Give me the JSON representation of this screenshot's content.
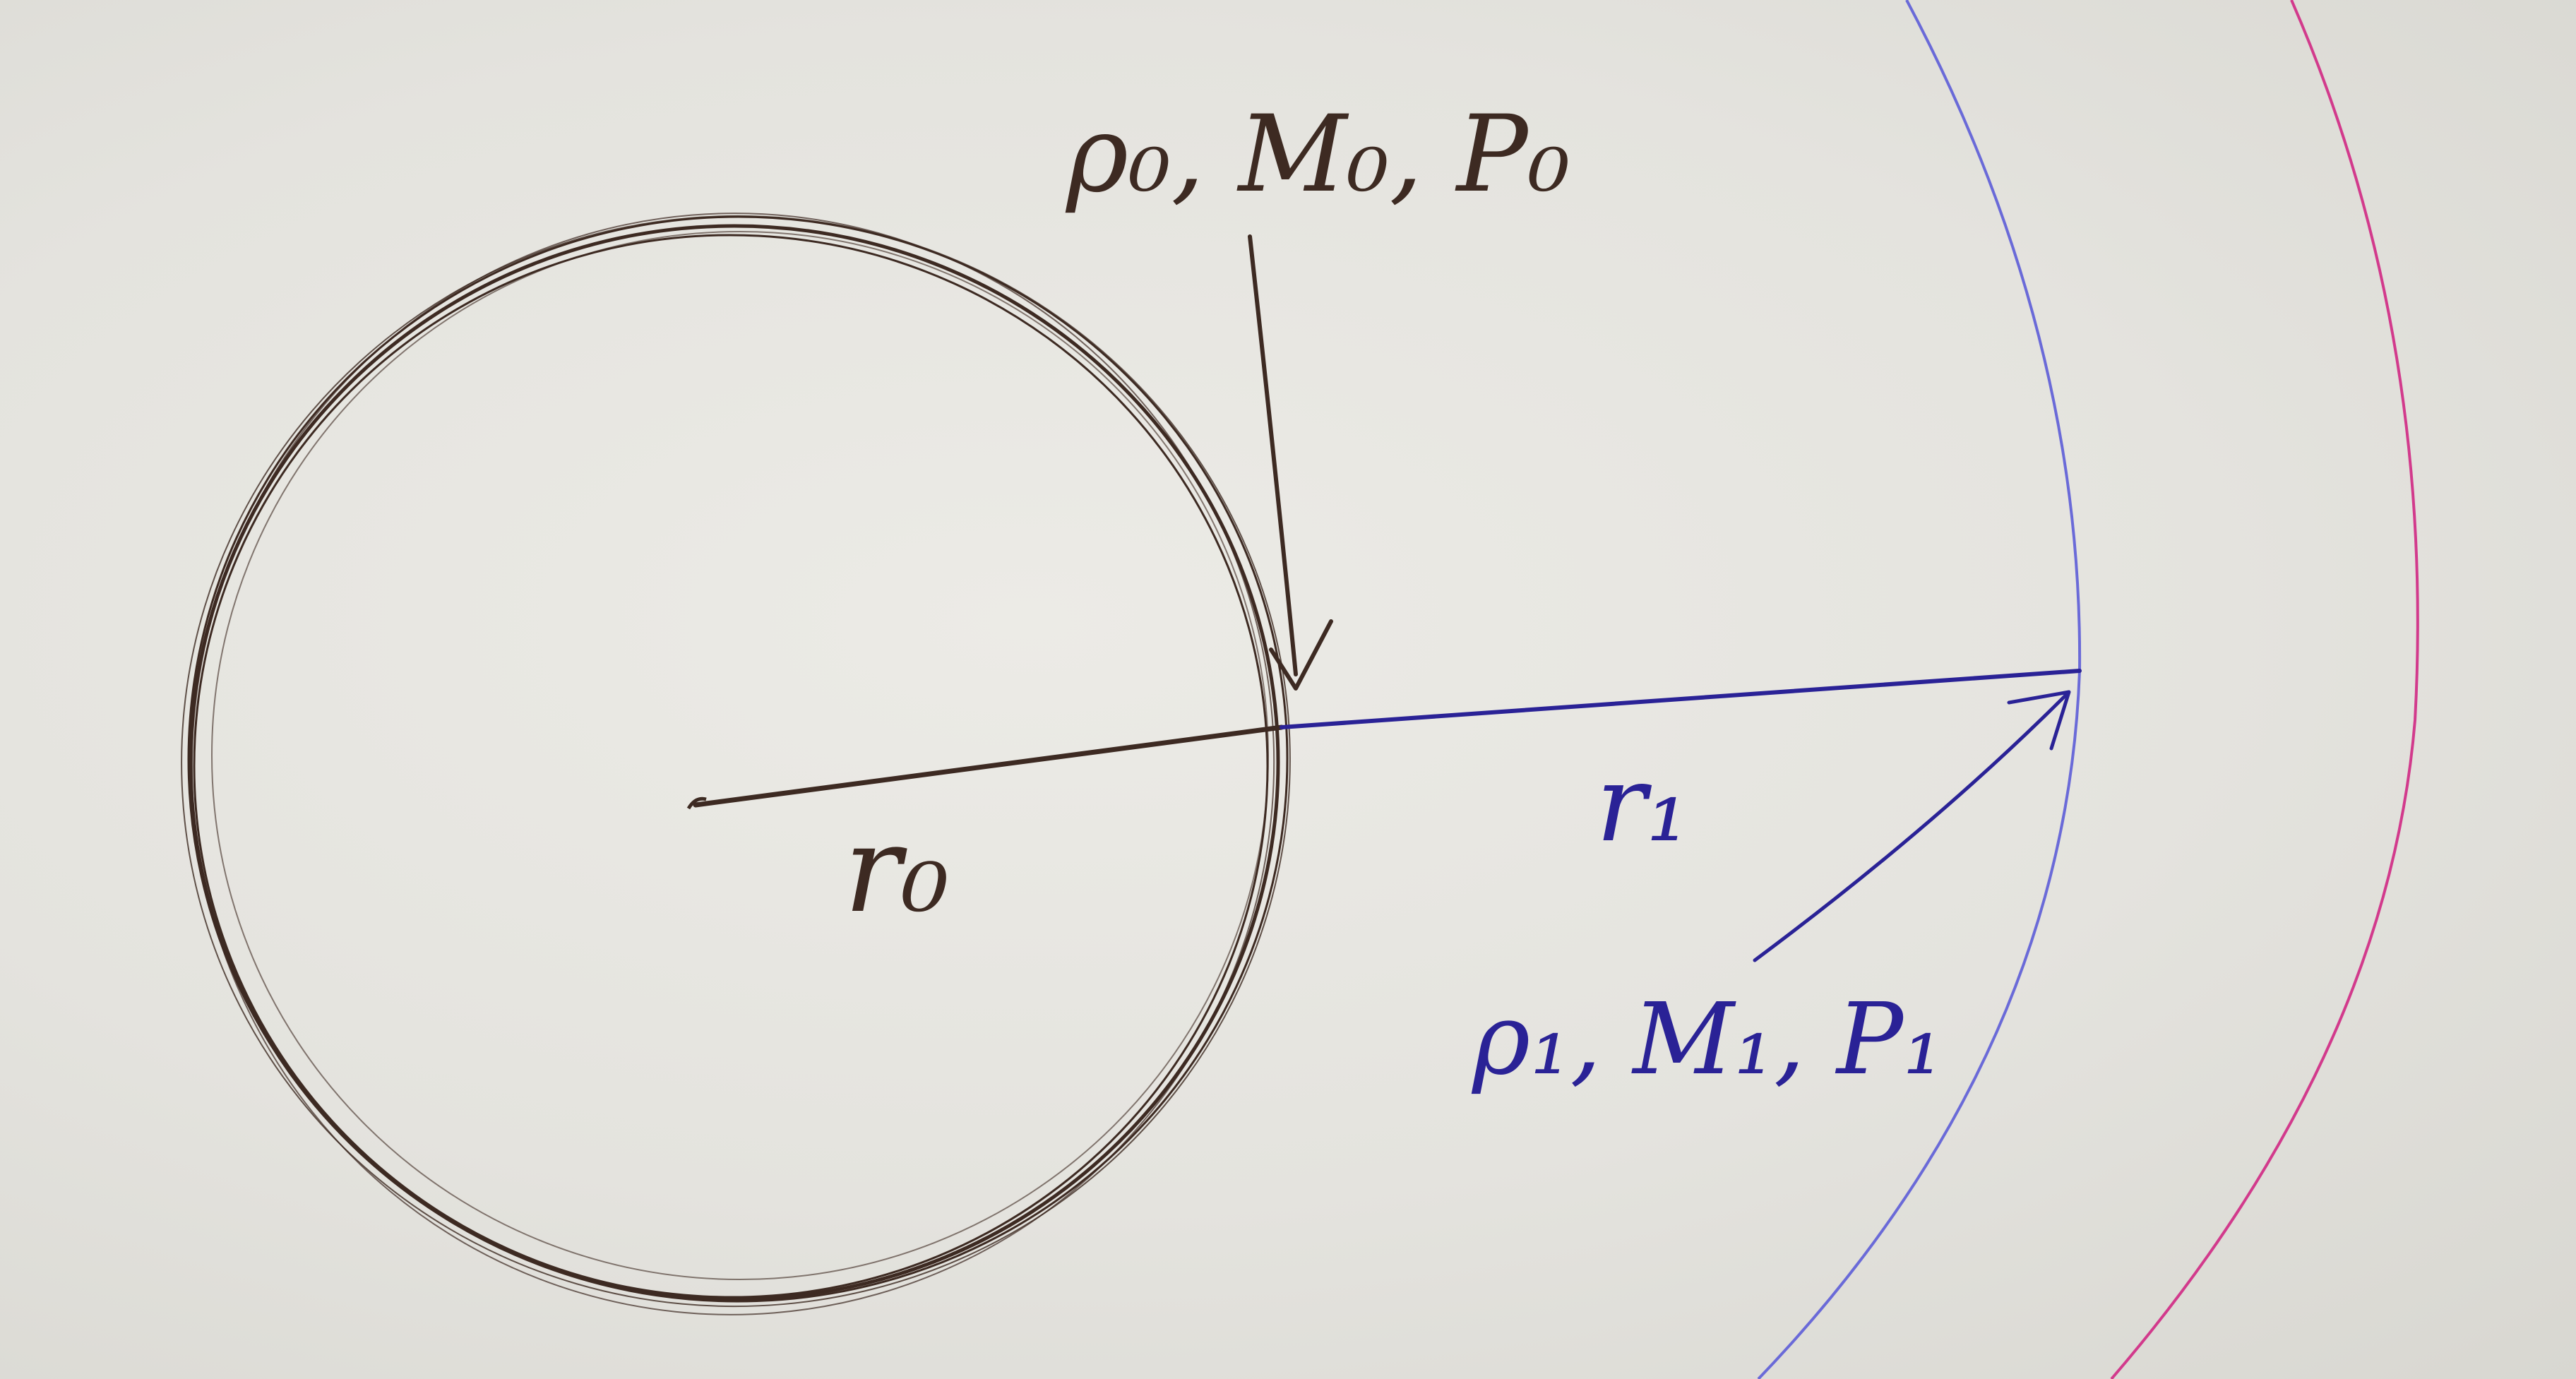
{
  "labels": {
    "inner_region": "ρ₀, M₀, P₀",
    "r0": "r₀",
    "r1": "r₁",
    "outer_region": "ρ₁, M₁, P₁"
  },
  "colors": {
    "paper": "#e6e5e0",
    "brown_ink": "#3d2a22",
    "blue_ink": "#2a2296",
    "pale_blue_ink": "#6a6ad8",
    "magenta_ink": "#d23a8c"
  }
}
